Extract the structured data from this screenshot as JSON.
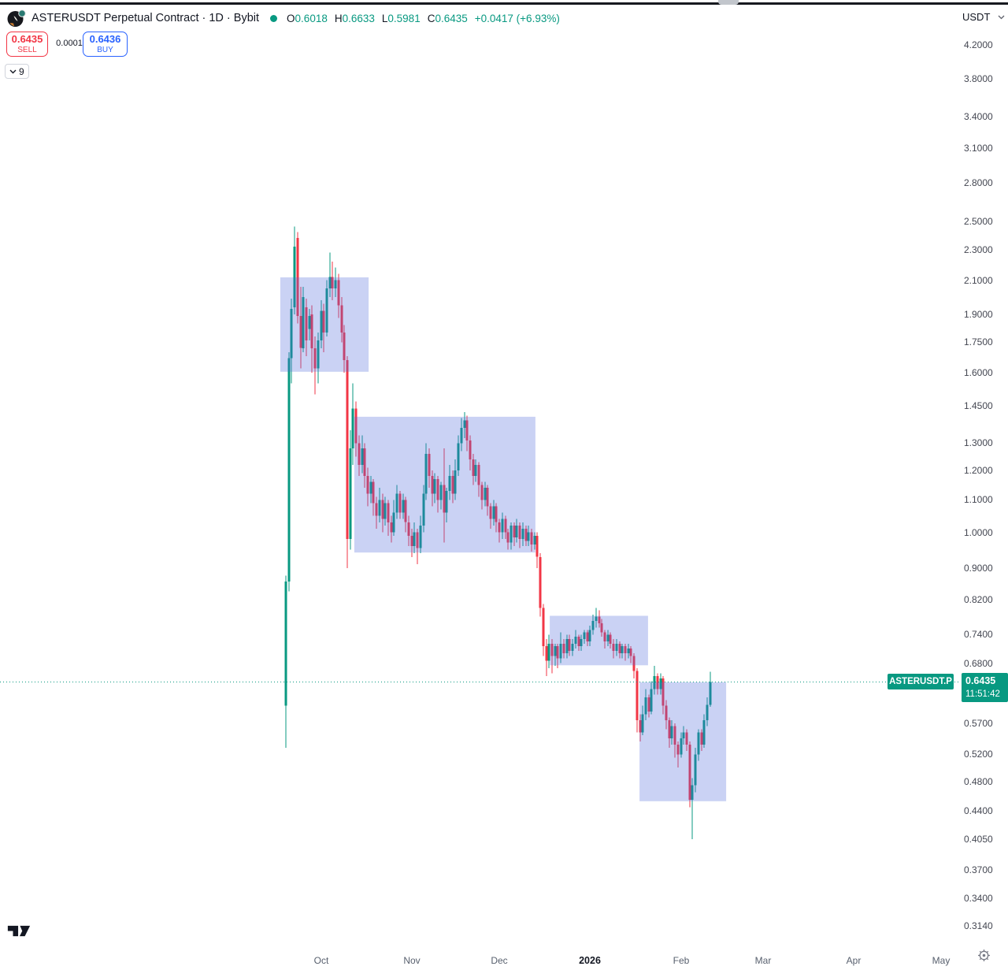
{
  "header": {
    "title": "ASTERUSDT Perpetual Contract · 1D · Bybit",
    "ohlc": {
      "o_label": "O",
      "o_value": "0.6018",
      "h_label": "H",
      "h_value": "0.6633",
      "l_label": "L",
      "l_value": "0.5981",
      "c_label": "C",
      "c_value": "0.6435",
      "change": "+0.0417 (+6.93%)"
    }
  },
  "order_panel": {
    "sell_price": "0.6435",
    "sell_label": "SELL",
    "spread": "0.0001",
    "buy_price": "0.6436",
    "buy_label": "BUY"
  },
  "indicators_chip": {
    "count": "9"
  },
  "price_axis": {
    "currency": "USDT",
    "ticks": [
      "4.2000",
      "3.8000",
      "3.4000",
      "3.1000",
      "2.8000",
      "2.5000",
      "2.3000",
      "2.1000",
      "1.9000",
      "1.7500",
      "1.6000",
      "1.4500",
      "1.3000",
      "1.2000",
      "1.1000",
      "1.0000",
      "0.9000",
      "0.8200",
      "0.7400",
      "0.6800",
      "0.5700",
      "0.5200",
      "0.4800",
      "0.4400",
      "0.4050",
      "0.3700",
      "0.3400",
      "0.3140"
    ],
    "symbol_badge": "ASTERUSDT.P",
    "last_price": "0.6435",
    "countdown": "11:51:42"
  },
  "time_axis": {
    "labels": [
      {
        "label": "Oct",
        "index": 12,
        "bold": false
      },
      {
        "label": "Nov",
        "index": 43,
        "bold": false
      },
      {
        "label": "Dec",
        "index": 73,
        "bold": false
      },
      {
        "label": "2026",
        "index": 104,
        "bold": true
      },
      {
        "label": "Feb",
        "index": 135,
        "bold": false
      },
      {
        "label": "Mar",
        "index": 163,
        "bold": false
      },
      {
        "label": "Apr",
        "index": 194,
        "bold": false
      },
      {
        "label": "May",
        "index": 224,
        "bold": false
      }
    ]
  },
  "icons": {
    "chevron_down": "chevron-down-icon",
    "gear": "gear-icon",
    "status_dot": "market-status-dot-icon",
    "logo": "aster-logo-icon",
    "tv": "tradingview-logo"
  },
  "colors": {
    "up": "#089981",
    "down": "#f23645",
    "box_fill": "#5069dc",
    "box_opacity": 0.3,
    "sell": "#f23645",
    "buy": "#2962ff",
    "badge_bg": "#089981",
    "accent_text": "#089981",
    "title_text": "#131722",
    "axis_text": "#434651"
  },
  "chart_data": {
    "type": "candlestick",
    "symbol": "ASTERUSDT.P",
    "interval": "1D",
    "exchange": "Bybit",
    "scale": "log",
    "grid": false,
    "current_price": 0.6435,
    "price_axis_range": [
      0.314,
      4.2
    ],
    "candles_ohlc": [
      [
        0.6,
        0.88,
        0.53,
        0.865
      ],
      [
        0.865,
        1.7,
        0.84,
        1.67
      ],
      [
        1.67,
        1.99,
        1.55,
        1.93
      ],
      [
        1.94,
        2.46,
        1.9,
        2.32
      ],
      [
        2.38,
        2.42,
        1.85,
        1.89
      ],
      [
        1.89,
        2.06,
        1.62,
        1.72
      ],
      [
        1.72,
        2.06,
        1.7,
        2.0
      ],
      [
        1.94,
        1.99,
        1.68,
        1.76
      ],
      [
        1.82,
        1.93,
        1.76,
        1.89
      ],
      [
        1.9,
        1.95,
        1.6,
        1.72
      ],
      [
        1.72,
        1.78,
        1.5,
        1.62
      ],
      [
        1.62,
        1.8,
        1.55,
        1.76
      ],
      [
        1.76,
        1.98,
        1.72,
        1.92
      ],
      [
        1.92,
        1.96,
        1.7,
        1.8
      ],
      [
        1.8,
        2.1,
        1.78,
        2.05
      ],
      [
        2.05,
        2.28,
        2.0,
        2.12
      ],
      [
        2.12,
        2.22,
        1.98,
        2.05
      ],
      [
        2.05,
        2.18,
        2.0,
        2.1
      ],
      [
        2.1,
        2.14,
        1.88,
        1.95
      ],
      [
        1.95,
        2.0,
        1.75,
        1.8
      ],
      [
        1.8,
        1.84,
        1.6,
        1.66
      ],
      [
        1.66,
        1.68,
        0.9,
        0.98
      ],
      [
        0.98,
        1.35,
        0.95,
        1.28
      ],
      [
        1.28,
        1.55,
        1.22,
        1.44
      ],
      [
        1.44,
        1.47,
        1.25,
        1.3
      ],
      [
        1.3,
        1.33,
        1.18,
        1.22
      ],
      [
        1.22,
        1.33,
        1.19,
        1.28
      ],
      [
        1.28,
        1.3,
        1.14,
        1.18
      ],
      [
        1.18,
        1.21,
        1.08,
        1.12
      ],
      [
        1.12,
        1.18,
        1.09,
        1.16
      ],
      [
        1.16,
        1.17,
        1.05,
        1.09
      ],
      [
        1.09,
        1.11,
        1.01,
        1.05
      ],
      [
        1.05,
        1.14,
        1.03,
        1.1
      ],
      [
        1.1,
        1.12,
        1.0,
        1.04
      ],
      [
        1.04,
        1.11,
        1.02,
        1.09
      ],
      [
        1.09,
        1.1,
        0.99,
        1.03
      ],
      [
        1.03,
        1.05,
        0.97,
        1.0
      ],
      [
        1.0,
        1.1,
        0.99,
        1.06
      ],
      [
        1.06,
        1.15,
        1.04,
        1.12
      ],
      [
        1.12,
        1.13,
        1.04,
        1.06
      ],
      [
        1.06,
        1.12,
        1.04,
        1.1
      ],
      [
        1.1,
        1.11,
        1.0,
        1.03
      ],
      [
        1.03,
        1.05,
        0.96,
        0.99
      ],
      [
        0.99,
        1.01,
        0.93,
        0.96
      ],
      [
        0.96,
        1.03,
        0.94,
        1.0
      ],
      [
        1.0,
        1.01,
        0.91,
        0.955
      ],
      [
        0.955,
        1.05,
        0.94,
        1.02
      ],
      [
        1.02,
        1.15,
        1.0,
        1.12
      ],
      [
        1.12,
        1.3,
        1.1,
        1.26
      ],
      [
        1.26,
        1.28,
        1.14,
        1.18
      ],
      [
        1.18,
        1.2,
        1.08,
        1.12
      ],
      [
        1.12,
        1.19,
        1.09,
        1.17
      ],
      [
        1.17,
        1.18,
        1.06,
        1.1
      ],
      [
        1.1,
        1.16,
        1.07,
        1.15
      ],
      [
        1.15,
        1.28,
        0.97,
        1.06
      ],
      [
        1.06,
        1.14,
        1.03,
        1.13
      ],
      [
        1.13,
        1.22,
        1.1,
        1.18
      ],
      [
        1.18,
        1.2,
        1.09,
        1.12
      ],
      [
        1.12,
        1.24,
        1.1,
        1.2
      ],
      [
        1.2,
        1.33,
        1.18,
        1.3
      ],
      [
        1.3,
        1.4,
        1.27,
        1.36
      ],
      [
        1.36,
        1.425,
        1.32,
        1.39
      ],
      [
        1.39,
        1.41,
        1.27,
        1.31
      ],
      [
        1.31,
        1.33,
        1.2,
        1.24
      ],
      [
        1.24,
        1.26,
        1.15,
        1.18
      ],
      [
        1.18,
        1.24,
        1.16,
        1.22
      ],
      [
        1.22,
        1.23,
        1.11,
        1.15
      ],
      [
        1.15,
        1.16,
        1.07,
        1.1
      ],
      [
        1.1,
        1.16,
        1.08,
        1.14
      ],
      [
        1.14,
        1.15,
        1.05,
        1.08
      ],
      [
        1.08,
        1.09,
        1.01,
        1.04
      ],
      [
        1.04,
        1.1,
        1.02,
        1.08
      ],
      [
        1.08,
        1.09,
        1.0,
        1.03
      ],
      [
        1.03,
        1.04,
        0.97,
        1.0
      ],
      [
        1.0,
        1.06,
        0.98,
        1.04
      ],
      [
        1.04,
        1.05,
        0.98,
        1.0
      ],
      [
        1.0,
        1.01,
        0.95,
        0.97
      ],
      [
        0.97,
        1.03,
        0.95,
        1.02
      ],
      [
        1.02,
        1.03,
        0.96,
        0.985
      ],
      [
        0.985,
        1.04,
        0.97,
        1.02
      ],
      [
        1.02,
        1.03,
        0.955,
        0.98
      ],
      [
        0.98,
        1.03,
        0.96,
        1.01
      ],
      [
        1.01,
        1.02,
        0.96,
        0.975
      ],
      [
        0.975,
        1.02,
        0.96,
        1.0
      ],
      [
        1.0,
        1.01,
        0.945,
        0.965
      ],
      [
        0.965,
        1.0,
        0.95,
        0.99
      ],
      [
        0.99,
        1.0,
        0.9,
        0.93
      ],
      [
        0.93,
        0.94,
        0.78,
        0.8
      ],
      [
        0.8,
        0.81,
        0.695,
        0.715
      ],
      [
        0.715,
        0.73,
        0.655,
        0.685
      ],
      [
        0.685,
        0.74,
        0.67,
        0.72
      ],
      [
        0.72,
        0.73,
        0.66,
        0.695
      ],
      [
        0.695,
        0.72,
        0.675,
        0.715
      ],
      [
        0.715,
        0.72,
        0.67,
        0.69
      ],
      [
        0.69,
        0.745,
        0.68,
        0.72
      ],
      [
        0.72,
        0.73,
        0.69,
        0.7
      ],
      [
        0.7,
        0.74,
        0.69,
        0.73
      ],
      [
        0.73,
        0.74,
        0.695,
        0.705
      ],
      [
        0.705,
        0.73,
        0.695,
        0.72
      ],
      [
        0.72,
        0.75,
        0.71,
        0.735
      ],
      [
        0.735,
        0.74,
        0.705,
        0.715
      ],
      [
        0.715,
        0.74,
        0.705,
        0.73
      ],
      [
        0.73,
        0.75,
        0.72,
        0.745
      ],
      [
        0.745,
        0.75,
        0.715,
        0.725
      ],
      [
        0.725,
        0.76,
        0.715,
        0.75
      ],
      [
        0.75,
        0.785,
        0.74,
        0.77
      ],
      [
        0.77,
        0.8,
        0.755,
        0.78
      ],
      [
        0.78,
        0.795,
        0.755,
        0.765
      ],
      [
        0.765,
        0.775,
        0.735,
        0.745
      ],
      [
        0.745,
        0.75,
        0.71,
        0.725
      ],
      [
        0.725,
        0.75,
        0.715,
        0.74
      ],
      [
        0.74,
        0.745,
        0.71,
        0.72
      ],
      [
        0.72,
        0.73,
        0.69,
        0.705
      ],
      [
        0.705,
        0.73,
        0.695,
        0.72
      ],
      [
        0.72,
        0.725,
        0.69,
        0.7
      ],
      [
        0.7,
        0.72,
        0.69,
        0.715
      ],
      [
        0.715,
        0.72,
        0.685,
        0.7
      ],
      [
        0.7,
        0.72,
        0.69,
        0.71
      ],
      [
        0.71,
        0.715,
        0.68,
        0.695
      ],
      [
        0.695,
        0.7,
        0.65,
        0.665
      ],
      [
        0.665,
        0.67,
        0.555,
        0.575
      ],
      [
        0.575,
        0.585,
        0.54,
        0.555
      ],
      [
        0.555,
        0.6,
        0.55,
        0.585
      ],
      [
        0.585,
        0.63,
        0.575,
        0.615
      ],
      [
        0.615,
        0.62,
        0.58,
        0.59
      ],
      [
        0.59,
        0.645,
        0.585,
        0.63
      ],
      [
        0.63,
        0.675,
        0.62,
        0.655
      ],
      [
        0.655,
        0.66,
        0.62,
        0.63
      ],
      [
        0.63,
        0.66,
        0.62,
        0.65
      ],
      [
        0.65,
        0.655,
        0.585,
        0.6
      ],
      [
        0.6,
        0.61,
        0.56,
        0.575
      ],
      [
        0.575,
        0.58,
        0.53,
        0.545
      ],
      [
        0.545,
        0.575,
        0.535,
        0.565
      ],
      [
        0.565,
        0.57,
        0.515,
        0.535
      ],
      [
        0.535,
        0.54,
        0.5,
        0.52
      ],
      [
        0.52,
        0.555,
        0.515,
        0.545
      ],
      [
        0.545,
        0.565,
        0.535,
        0.555
      ],
      [
        0.555,
        0.56,
        0.525,
        0.535
      ],
      [
        0.535,
        0.54,
        0.445,
        0.455
      ],
      [
        0.455,
        0.485,
        0.405,
        0.475
      ],
      [
        0.475,
        0.53,
        0.465,
        0.52
      ],
      [
        0.52,
        0.56,
        0.51,
        0.555
      ],
      [
        0.555,
        0.56,
        0.525,
        0.535
      ],
      [
        0.535,
        0.585,
        0.53,
        0.575
      ],
      [
        0.575,
        0.615,
        0.565,
        0.6018
      ],
      [
        0.6018,
        0.6633,
        0.5981,
        0.6435
      ]
    ],
    "boxes": [
      {
        "index_start": -1.9,
        "index_end": 28.3,
        "price_top": 2.118,
        "price_bottom": 1.604
      },
      {
        "index_start": 23.4,
        "index_end": 85.3,
        "price_top": 1.405,
        "price_bottom": 0.942
      },
      {
        "index_start": 90.2,
        "index_end": 123.8,
        "price_top": 0.782,
        "price_bottom": 0.676
      },
      {
        "index_start": 120.9,
        "index_end": 150.5,
        "price_top": 0.643,
        "price_bottom": 0.453
      }
    ]
  }
}
